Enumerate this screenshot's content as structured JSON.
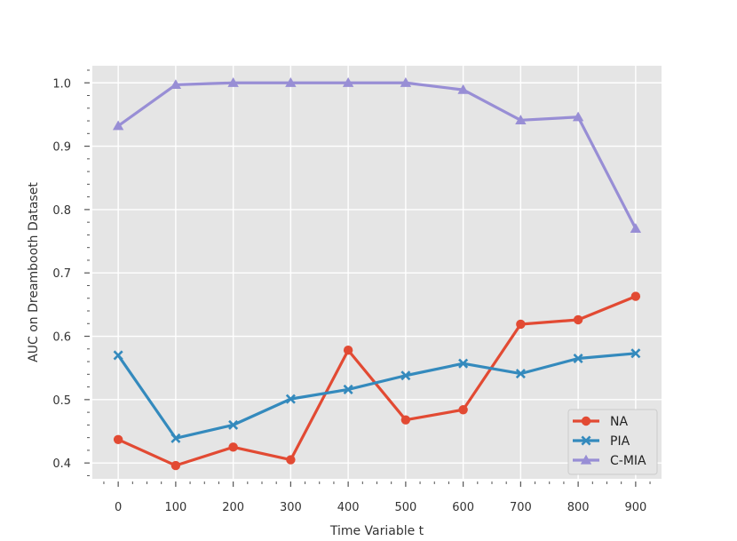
{
  "chart_data": {
    "type": "line",
    "title": "",
    "xlabel": "Time Variable t",
    "ylabel": "AUC on Dreambooth Dataset",
    "x": [
      0,
      100,
      200,
      300,
      400,
      500,
      600,
      700,
      800,
      900
    ],
    "xticks": [
      "0",
      "100",
      "200",
      "300",
      "400",
      "500",
      "600",
      "700",
      "800",
      "900"
    ],
    "yticks": [
      "0.4",
      "0.5",
      "0.6",
      "0.7",
      "0.8",
      "0.9",
      "1.0"
    ],
    "xlim": [
      -45,
      945
    ],
    "ylim": [
      0.375,
      1.027
    ],
    "grid": true,
    "legend_position": "lower-right",
    "background": "#e5e5e5",
    "series": [
      {
        "name": "NA",
        "color": "#e24a33",
        "marker": "circle",
        "values": [
          0.437,
          0.396,
          0.425,
          0.405,
          0.578,
          0.468,
          0.484,
          0.619,
          0.626,
          0.663
        ]
      },
      {
        "name": "PIA",
        "color": "#348abd",
        "marker": "x",
        "values": [
          0.57,
          0.439,
          0.46,
          0.501,
          0.516,
          0.538,
          0.557,
          0.541,
          0.565,
          0.573
        ]
      },
      {
        "name": "C-MIA",
        "color": "#988ed5",
        "marker": "triangle",
        "values": [
          0.932,
          0.997,
          1.0,
          1.0,
          1.0,
          1.0,
          0.989,
          0.941,
          0.946,
          0.77
        ]
      }
    ]
  }
}
